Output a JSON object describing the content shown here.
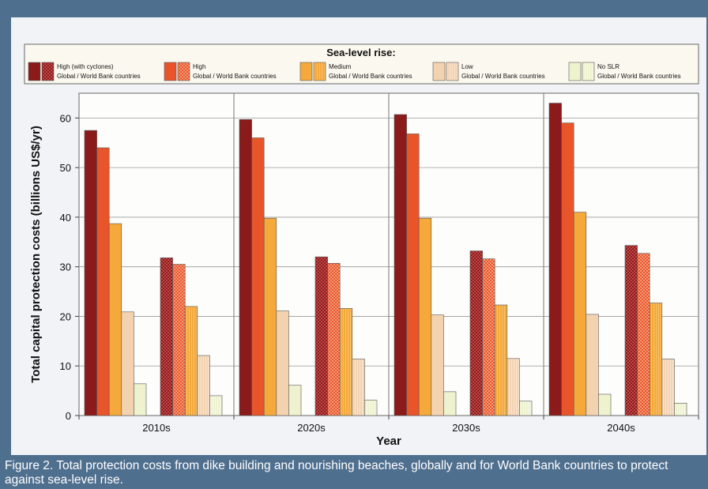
{
  "figure": {
    "caption": "Figure 2. Total protection costs from dike building and nourishing beaches, globally and for World Bank countries to protect against sea-level rise."
  },
  "colors": {
    "high_cyclones": "#8b1a1a",
    "high": "#e8552b",
    "medium": "#f5a93a",
    "low": "#f3d2b0",
    "no_slr": "#eef2cf",
    "legend_bg": "#fbf9ef",
    "plot_bg": "#fdfdfb"
  },
  "chart_data": {
    "type": "bar",
    "categories": [
      "2010s",
      "2020s",
      "2030s",
      "2040s"
    ],
    "xlabel": "Year",
    "ylabel": "Total capital protection costs (billions US$/yr)",
    "ylim": [
      0,
      65
    ],
    "yticks": [
      0,
      10,
      20,
      30,
      40,
      50,
      60
    ],
    "grid": true,
    "legend": {
      "title": "Sea-level rise:",
      "placement": "top",
      "entries": [
        {
          "key": "high_cyclones",
          "line1": "High (with cyclones)",
          "line2": "Global / World Bank countries"
        },
        {
          "key": "high",
          "line1": "High",
          "line2": "Global / World Bank countries"
        },
        {
          "key": "medium",
          "line1": "Medium",
          "line2": "Global / World Bank countries"
        },
        {
          "key": "low",
          "line1": "Low",
          "line2": "Global / World Bank countries"
        },
        {
          "key": "no_slr",
          "line1": "No SLR",
          "line2": "Global / World Bank countries"
        }
      ]
    },
    "groups": [
      "Global",
      "World Bank countries"
    ],
    "series": [
      {
        "key": "high_cyclones",
        "global": [
          57.5,
          59.7,
          60.7,
          63.0
        ],
        "world_bank": [
          31.8,
          32.0,
          33.2,
          34.3
        ]
      },
      {
        "key": "high",
        "global": [
          54.0,
          56.0,
          56.8,
          59.0
        ],
        "world_bank": [
          30.5,
          30.7,
          31.6,
          32.7
        ]
      },
      {
        "key": "medium",
        "global": [
          38.7,
          39.8,
          39.8,
          41.0
        ],
        "world_bank": [
          22.0,
          21.6,
          22.3,
          22.7
        ]
      },
      {
        "key": "low",
        "global": [
          20.9,
          21.1,
          20.3,
          20.4
        ],
        "world_bank": [
          12.1,
          11.4,
          11.5,
          11.4
        ]
      },
      {
        "key": "no_slr",
        "global": [
          6.4,
          6.1,
          4.8,
          4.3
        ],
        "world_bank": [
          4.0,
          3.1,
          2.9,
          2.5
        ]
      }
    ]
  }
}
